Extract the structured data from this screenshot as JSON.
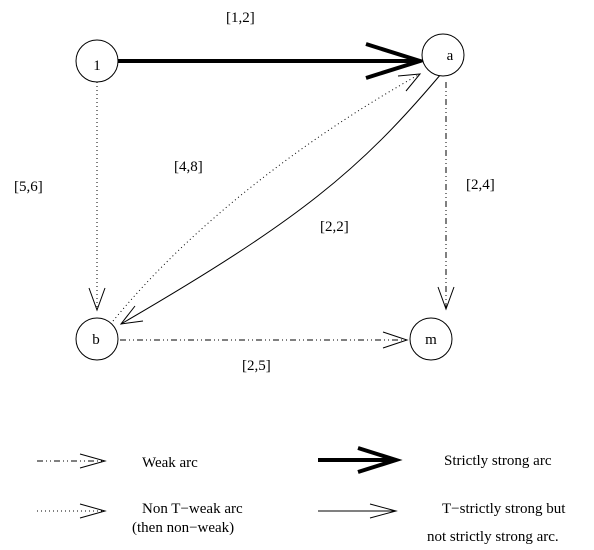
{
  "nodes": {
    "one": "1",
    "a": "a",
    "b": "b",
    "m": "m"
  },
  "arcs": {
    "one_a": "[1,2]",
    "one_b": "[5,6]",
    "b_a": "[4,8]",
    "a_b": "[2,2]",
    "a_m": "[2,4]",
    "b_m": "[2,5]"
  },
  "legend": {
    "weak": "Weak arc",
    "strictly_strong": "Strictly strong arc",
    "non_t_weak_1": "Non T−weak arc",
    "non_t_weak_2": "(then non−weak)",
    "t_strictly_strong_1": "T−strictly strong but",
    "t_strictly_strong_2": "not strictly strong arc."
  }
}
